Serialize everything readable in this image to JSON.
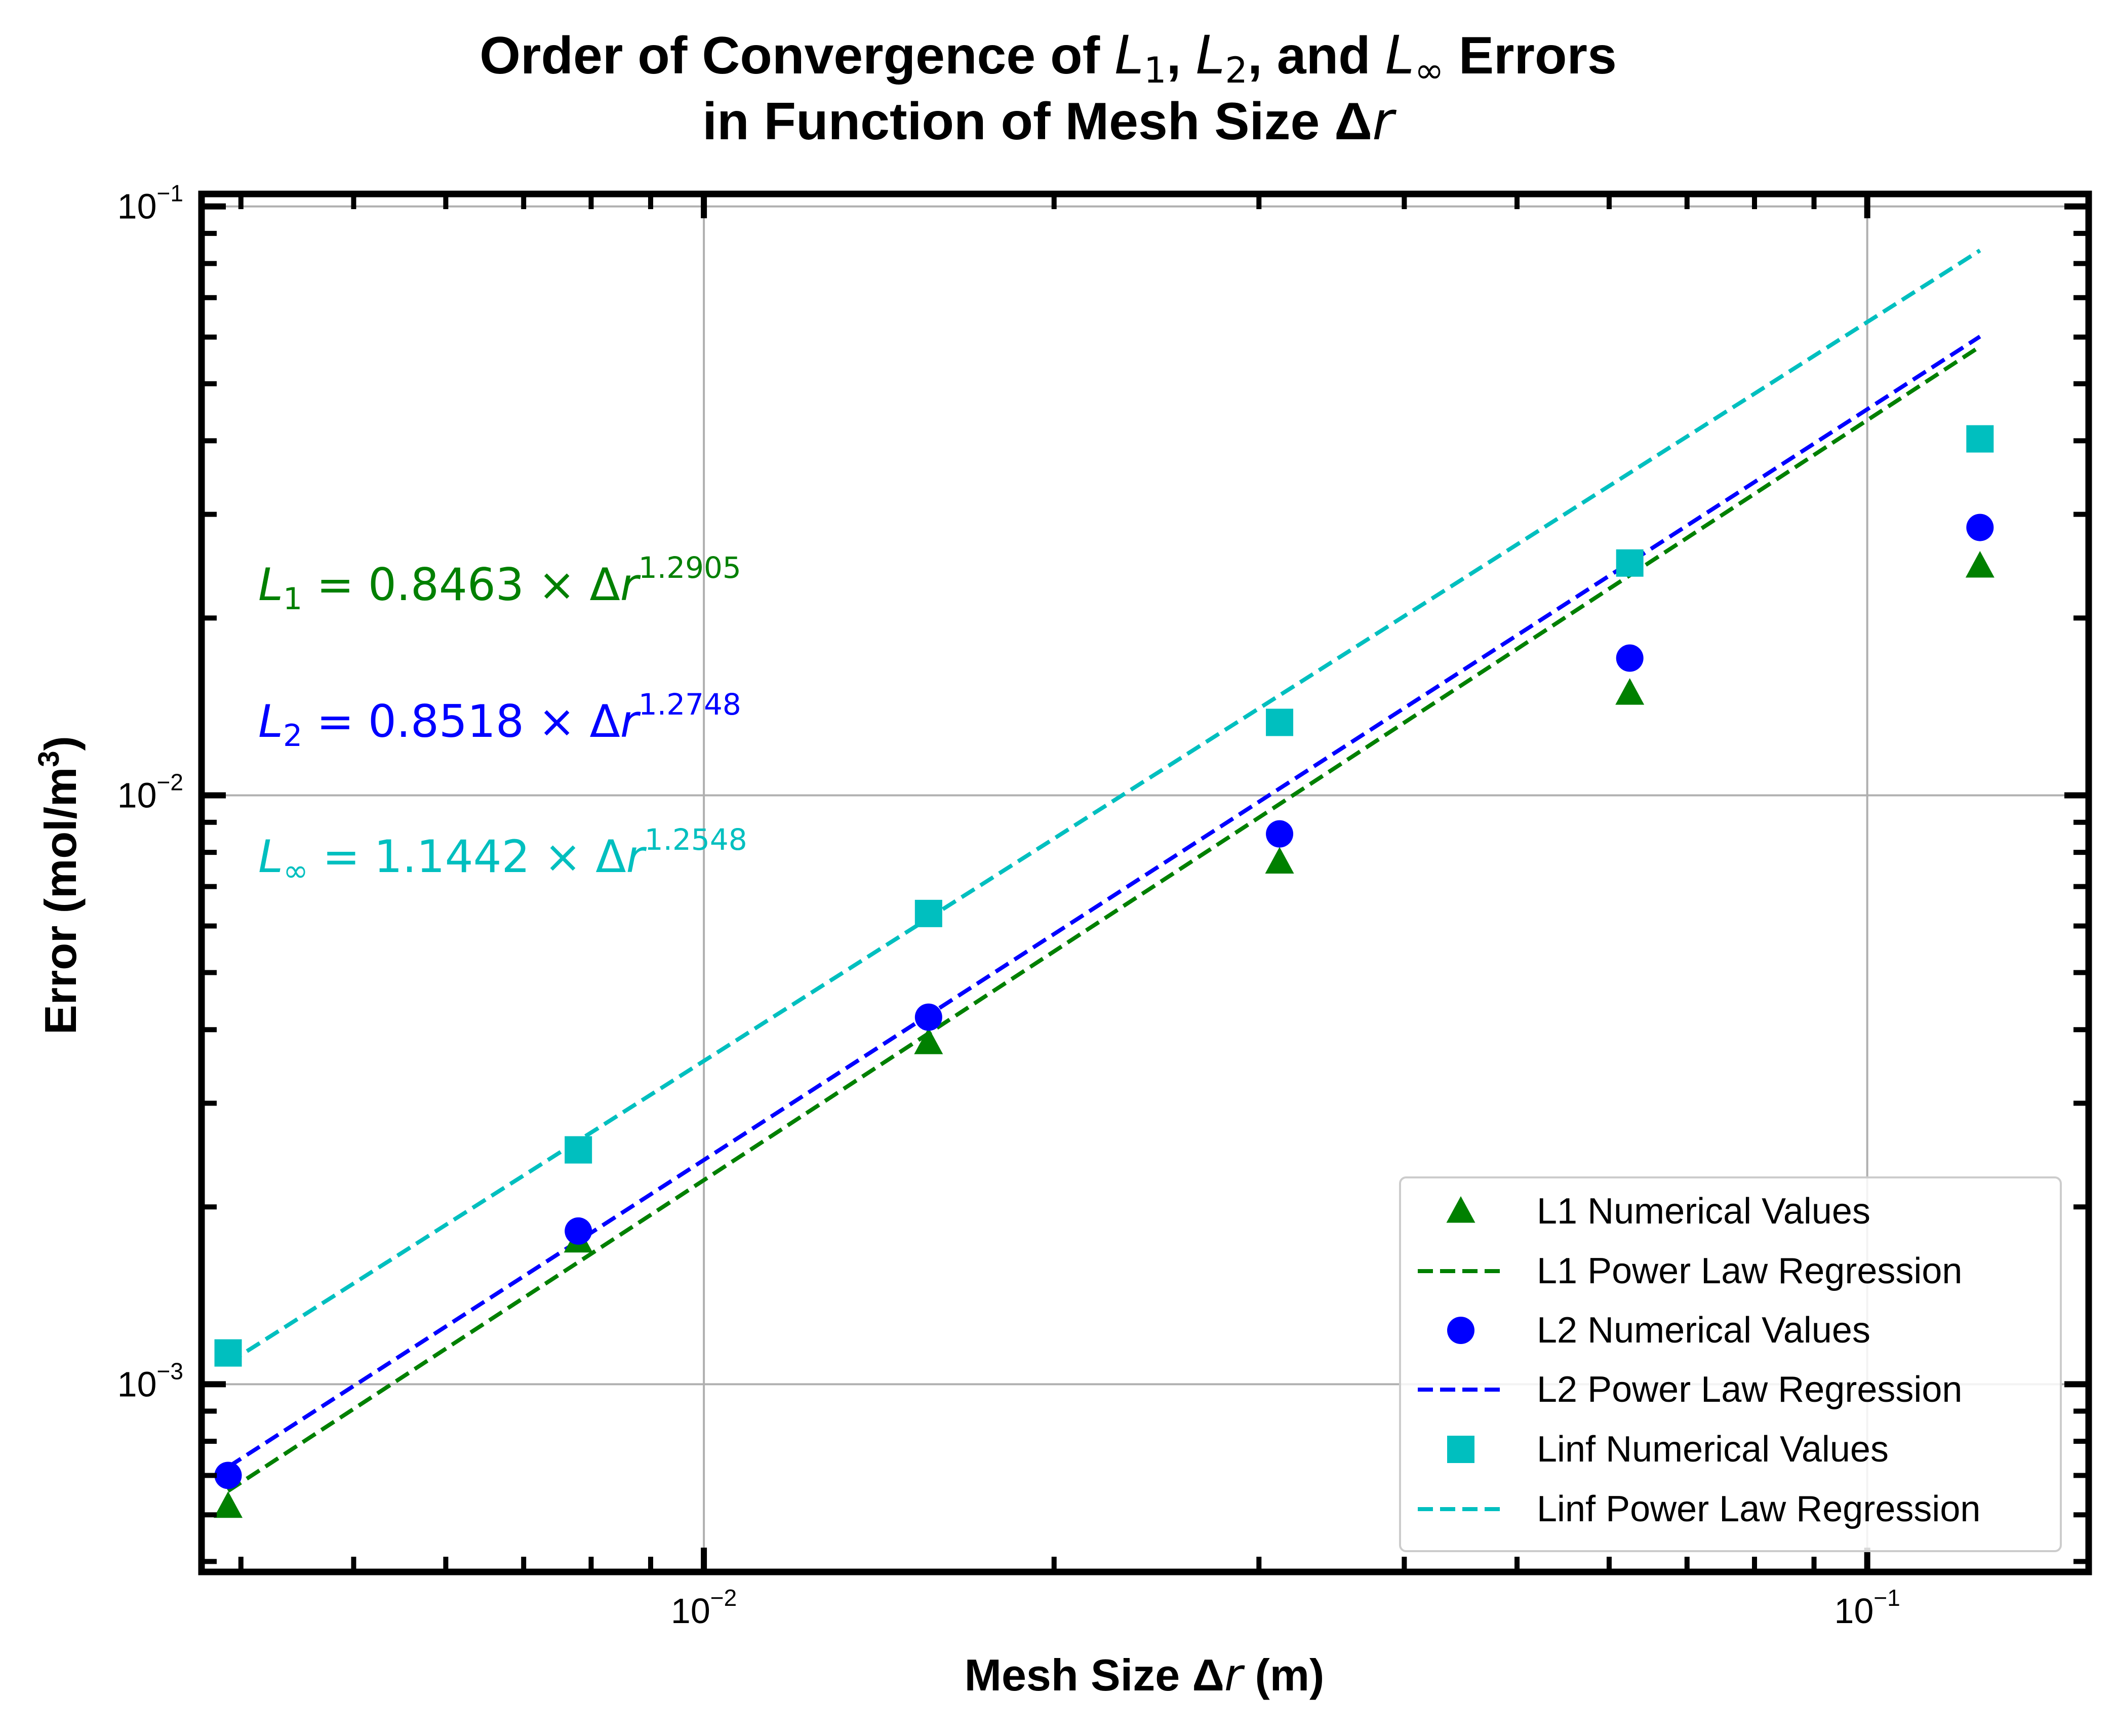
{
  "chart_data": {
    "type": "scatter",
    "title_line1_prefix": "Order of Convergence of ",
    "title_line1_suffix": " Errors",
    "title_line2": "in Function of Mesh Size Δ",
    "xlabel_prefix": "Mesh Size Δ",
    "xlabel_suffix": " (m)",
    "ylabel_prefix": "Error (mol/m",
    "ylabel_sup": "3",
    "ylabel_suffix": ")",
    "x_scale": "log",
    "y_scale": "log",
    "xlim": [
      0.0037,
      0.155
    ],
    "ylim": [
      0.00048,
      0.105
    ],
    "grid": true,
    "legend_position": "bottom-right",
    "x_ticks": [
      {
        "value": 0.01,
        "base": "10",
        "exp": "−2"
      },
      {
        "value": 0.1,
        "base": "10",
        "exp": "−1"
      }
    ],
    "y_ticks": [
      {
        "value": 0.001,
        "base": "10",
        "exp": "−3"
      },
      {
        "value": 0.01,
        "base": "10",
        "exp": "−2"
      },
      {
        "value": 0.1,
        "base": "10",
        "exp": "−1"
      }
    ],
    "x_tick_labels": [
      "10",
      "10"
    ],
    "x": [
      0.0039,
      0.0078,
      0.0156,
      0.03125,
      0.0625,
      0.125
    ],
    "series": [
      {
        "name": "L1 Numerical Values",
        "fit_name": "L1 Power Law Regression",
        "color": "#008000",
        "marker": "triangle",
        "values": [
          0.00062,
          0.00175,
          0.0038,
          0.0077,
          0.0149,
          0.0245
        ],
        "coef": 0.8463,
        "exponent": 1.2905,
        "equation": {
          "lhs_base": "L",
          "lhs_sub": "1",
          "rhs": " = 0.8463 × Δ",
          "exp": "1.2905"
        }
      },
      {
        "name": "L2 Numerical Values",
        "fit_name": "L2 Power Law Regression",
        "color": "#0000ff",
        "marker": "circle",
        "values": [
          0.0007,
          0.00182,
          0.0042,
          0.0086,
          0.0171,
          0.0285
        ],
        "coef": 0.8518,
        "exponent": 1.2748,
        "equation": {
          "lhs_base": "L",
          "lhs_sub": "2",
          "rhs": " = 0.8518 × Δ",
          "exp": "1.2748"
        }
      },
      {
        "name": "Linf Numerical Values",
        "fit_name": "Linf Power Law Regression",
        "color": "#00bfbf",
        "marker": "square",
        "values": [
          0.00113,
          0.0025,
          0.0063,
          0.0133,
          0.0248,
          0.0403
        ],
        "coef": 1.1442,
        "exponent": 1.2548,
        "equation": {
          "lhs_base": "L",
          "lhs_sub": "∞",
          "rhs": " = 1.1442 × Δ",
          "exp": "1.2548"
        }
      }
    ]
  }
}
